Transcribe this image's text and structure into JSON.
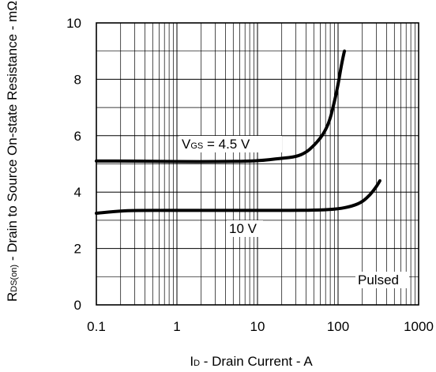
{
  "chart_data": {
    "type": "line",
    "x_scale": "log",
    "xlim": [
      0.1,
      1000
    ],
    "ylim": [
      0,
      10
    ],
    "x_ticks": [
      "0.1",
      "1",
      "10",
      "100",
      "1000"
    ],
    "y_ticks": [
      "0",
      "2",
      "4",
      "6",
      "8",
      "10"
    ],
    "grid": true,
    "xlabel_main": "I",
    "xlabel_sub": "D",
    "xlabel_rest": " - Drain Current - A",
    "ylabel_main": "R",
    "ylabel_sub": "DS(on)",
    "ylabel_rest": " - Drain to Source On-state Resistance - mΩ",
    "annotations": {
      "vgs_main": "V",
      "vgs_sub": "GS",
      "vgs_rest": " = 4.5 V",
      "ten_v": "10 V",
      "pulsed": "Pulsed"
    },
    "series": [
      {
        "x": [
          0.1,
          0.3,
          1,
          3,
          10,
          20,
          30,
          40,
          50,
          60,
          70,
          80,
          90,
          100,
          110,
          120
        ],
        "y": [
          5.1,
          5.1,
          5.08,
          5.08,
          5.1,
          5.2,
          5.25,
          5.4,
          5.65,
          5.9,
          6.2,
          6.6,
          7.2,
          7.8,
          8.5,
          9.0
        ]
      },
      {
        "x": [
          0.1,
          0.2,
          0.3,
          1,
          3,
          10,
          30,
          60,
          100,
          150,
          200,
          250,
          300,
          330
        ],
        "y": [
          3.25,
          3.33,
          3.35,
          3.35,
          3.35,
          3.35,
          3.35,
          3.36,
          3.4,
          3.5,
          3.65,
          3.9,
          4.2,
          4.4
        ]
      }
    ]
  }
}
